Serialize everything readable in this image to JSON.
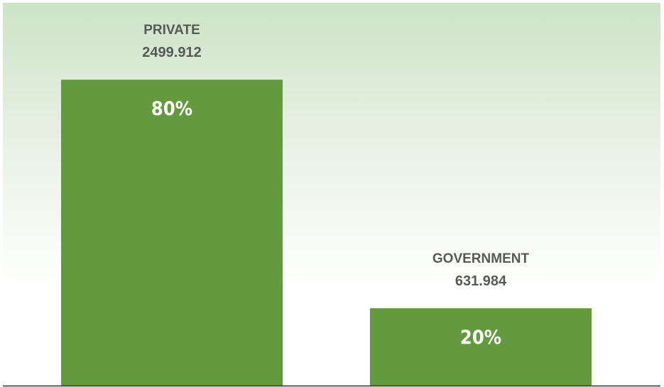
{
  "chart_data": {
    "type": "bar",
    "categories": [
      "PRIVATE",
      "GOVERNMENT"
    ],
    "values": [
      2499.912,
      631.984
    ],
    "value_labels": [
      "2499.912",
      "631.984"
    ],
    "percent_labels": [
      "80%",
      "20%"
    ],
    "title": "",
    "xlabel": "",
    "ylabel": "",
    "ylim": [
      0,
      3000
    ],
    "grid": false,
    "legend": "none",
    "colors": {
      "bar": "#639a3f",
      "label_text": "#555a57",
      "percent_text": "#ffffff",
      "baseline": "#333333",
      "background_top": "#cde3c7"
    }
  }
}
